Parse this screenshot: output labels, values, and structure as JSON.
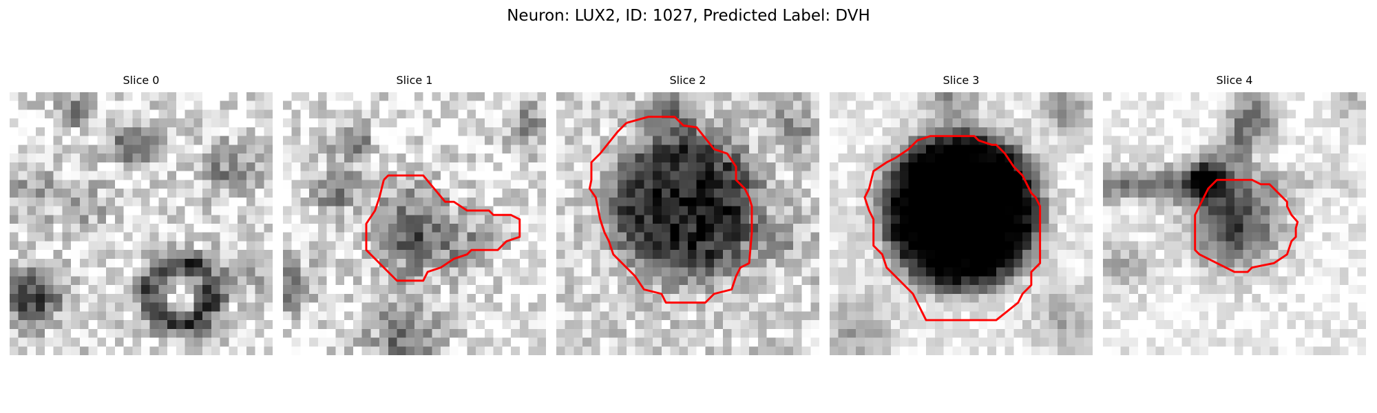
{
  "figure": {
    "suptitle": "Neuron: LUX2, ID: 1027, Predicted Label: DVH",
    "colormap": "grayscale",
    "contour_color": "#ff0000"
  },
  "panels": [
    {
      "title": "Slice 0",
      "has_contour": false
    },
    {
      "title": "Slice 1",
      "has_contour": true
    },
    {
      "title": "Slice 2",
      "has_contour": true
    },
    {
      "title": "Slice 3",
      "has_contour": true
    },
    {
      "title": "Slice 4",
      "has_contour": true
    }
  ]
}
